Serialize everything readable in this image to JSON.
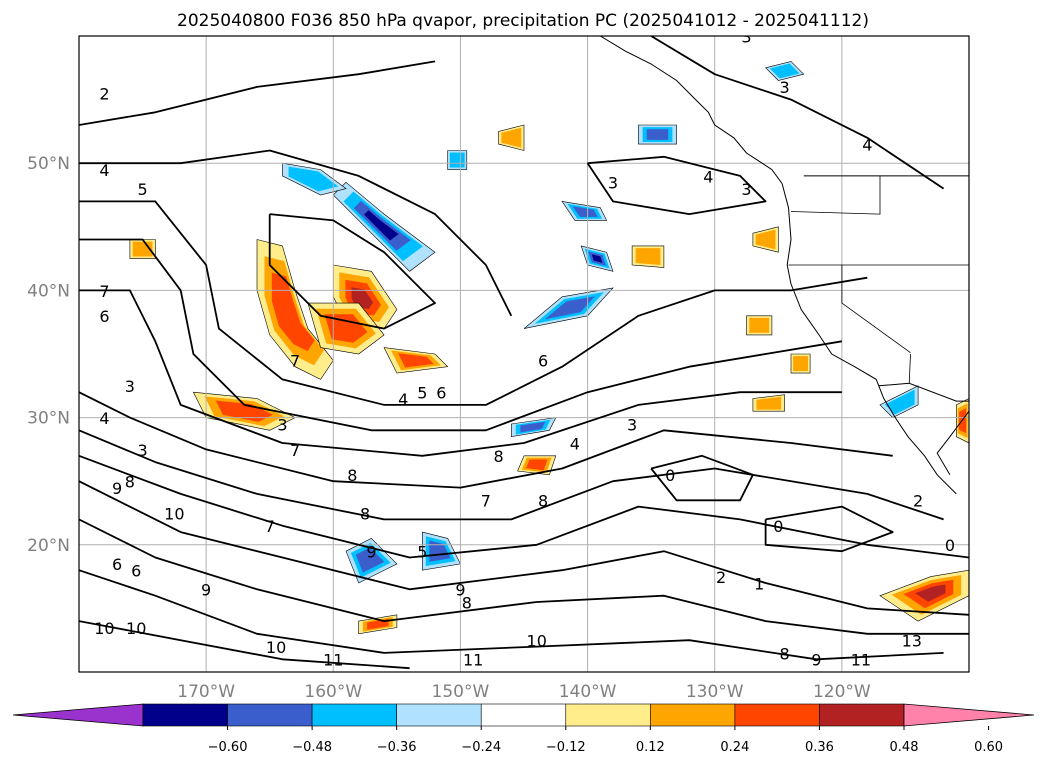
{
  "figure": {
    "title": "2025040800 F036 850 hPa qvapor, precipitation PC (2025041012 - 2025041112)"
  },
  "map": {
    "projection": "PlateCarree",
    "lon_range": [
      -180,
      -110
    ],
    "lat_range": [
      10,
      60
    ],
    "lat_ticks": [
      {
        "value": 50,
        "label": "50°N"
      },
      {
        "value": 40,
        "label": "40°N"
      },
      {
        "value": 30,
        "label": "30°N"
      },
      {
        "value": 20,
        "label": "20°N"
      }
    ],
    "lon_ticks": [
      {
        "value": -170,
        "label": "170°W"
      },
      {
        "value": -160,
        "label": "160°W"
      },
      {
        "value": -150,
        "label": "150°W"
      },
      {
        "value": -140,
        "label": "140°W"
      },
      {
        "value": -130,
        "label": "130°W"
      },
      {
        "value": -120,
        "label": "120°W"
      }
    ],
    "gridlines": true,
    "contour_labels": [
      {
        "text": "2",
        "lon": -178,
        "lat": 55
      },
      {
        "text": "4",
        "lon": -178,
        "lat": 49
      },
      {
        "text": "5",
        "lon": -175,
        "lat": 47.5
      },
      {
        "text": "7",
        "lon": -178,
        "lat": 39.5
      },
      {
        "text": "6",
        "lon": -178,
        "lat": 37.5
      },
      {
        "text": "3",
        "lon": -176,
        "lat": 32
      },
      {
        "text": "4",
        "lon": -178,
        "lat": 29.5
      },
      {
        "text": "3",
        "lon": -175,
        "lat": 27
      },
      {
        "text": "9",
        "lon": -177,
        "lat": 24
      },
      {
        "text": "8",
        "lon": -176,
        "lat": 24.5
      },
      {
        "text": "10",
        "lon": -172.5,
        "lat": 22
      },
      {
        "text": "6",
        "lon": -175.5,
        "lat": 17.5
      },
      {
        "text": "9",
        "lon": -170,
        "lat": 16
      },
      {
        "text": "10",
        "lon": -178,
        "lat": 13
      },
      {
        "text": "10",
        "lon": -175.5,
        "lat": 13
      },
      {
        "text": "7",
        "lon": -163,
        "lat": 34
      },
      {
        "text": "3",
        "lon": -164,
        "lat": 29
      },
      {
        "text": "7",
        "lon": -163,
        "lat": 27
      },
      {
        "text": "8",
        "lon": -158.5,
        "lat": 25
      },
      {
        "text": "7",
        "lon": -165,
        "lat": 21
      },
      {
        "text": "8",
        "lon": -157.5,
        "lat": 22
      },
      {
        "text": "9",
        "lon": -157,
        "lat": 19
      },
      {
        "text": "5",
        "lon": -153,
        "lat": 19
      },
      {
        "text": "9",
        "lon": -150,
        "lat": 16
      },
      {
        "text": "8",
        "lon": -149.5,
        "lat": 15
      },
      {
        "text": "10",
        "lon": -164.5,
        "lat": 11.5
      },
      {
        "text": "11",
        "lon": -160,
        "lat": 10.5
      },
      {
        "text": "11",
        "lon": -149,
        "lat": 10.5
      },
      {
        "text": "10",
        "lon": -144,
        "lat": 12
      },
      {
        "text": "4",
        "lon": -154.5,
        "lat": 31
      },
      {
        "text": "5",
        "lon": -153,
        "lat": 31.5
      },
      {
        "text": "6",
        "lon": -151.5,
        "lat": 31.5
      },
      {
        "text": "6",
        "lon": -143.5,
        "lat": 34
      },
      {
        "text": "4",
        "lon": -141,
        "lat": 27.5
      },
      {
        "text": "3",
        "lon": -136.5,
        "lat": 29
      },
      {
        "text": "8",
        "lon": -147,
        "lat": 26.5
      },
      {
        "text": "7",
        "lon": -148,
        "lat": 23
      },
      {
        "text": "8",
        "lon": -143.5,
        "lat": 23
      },
      {
        "text": "0",
        "lon": -133.5,
        "lat": 25
      },
      {
        "text": "0",
        "lon": -125,
        "lat": 21
      },
      {
        "text": "2",
        "lon": -129.5,
        "lat": 17
      },
      {
        "text": "1",
        "lon": -126.5,
        "lat": 16.5
      },
      {
        "text": "0",
        "lon": -111.5,
        "lat": 19.5
      },
      {
        "text": "2",
        "lon": -114,
        "lat": 23
      },
      {
        "text": "13",
        "lon": -114.5,
        "lat": 12
      },
      {
        "text": "11",
        "lon": -118.5,
        "lat": 10.5
      },
      {
        "text": "9",
        "lon": -122,
        "lat": 10.5
      },
      {
        "text": "8",
        "lon": -124.5,
        "lat": 11
      },
      {
        "text": "4",
        "lon": -130.5,
        "lat": 48.5
      },
      {
        "text": "3",
        "lon": -138,
        "lat": 48
      },
      {
        "text": "3",
        "lon": -127.5,
        "lat": 47.5
      },
      {
        "text": "3",
        "lon": -124.5,
        "lat": 55.5
      },
      {
        "text": "4",
        "lon": -118,
        "lat": 51
      },
      {
        "text": "3",
        "lon": -127.5,
        "lat": 59.5
      },
      {
        "text": "6",
        "lon": -177,
        "lat": 18
      }
    ]
  },
  "colorbar": {
    "ticks": [
      "−0.60",
      "−0.48",
      "−0.36",
      "−0.24",
      "−0.12",
      "0.12",
      "0.24",
      "0.36",
      "0.48",
      "0.60"
    ],
    "bins": [
      {
        "color": "#9a32cd"
      },
      {
        "color": "#00008b"
      },
      {
        "color": "#3a5fcd"
      },
      {
        "color": "#00bfff"
      },
      {
        "color": "#b0e2ff"
      },
      {
        "color": "#ffffff"
      },
      {
        "color": "#ffec8b"
      },
      {
        "color": "#ffa500"
      },
      {
        "color": "#ff4500"
      },
      {
        "color": "#b22222"
      },
      {
        "color": "#ff82ab"
      }
    ],
    "extend": "both"
  }
}
